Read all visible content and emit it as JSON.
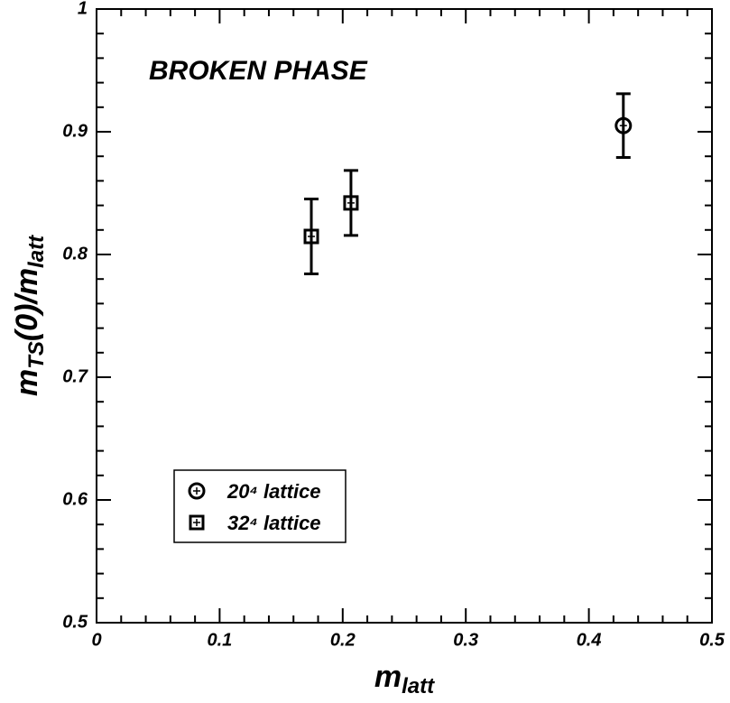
{
  "chart_data": {
    "type": "scatter",
    "annotation": "BROKEN PHASE",
    "xlabel_parts": [
      "m",
      "latt"
    ],
    "ylabel_parts": [
      "m",
      "TS",
      "(0)/m",
      "latt"
    ],
    "xlim": [
      0,
      0.5
    ],
    "ylim": [
      0.5,
      1
    ],
    "xticks": [
      0,
      0.1,
      0.2,
      0.3,
      0.4,
      0.5
    ],
    "yticks": [
      0.5,
      0.6,
      0.7,
      0.8,
      0.9,
      1
    ],
    "xminorticks": [
      0.02,
      0.04,
      0.06,
      0.08,
      0.12,
      0.14,
      0.16,
      0.18,
      0.22,
      0.24,
      0.26,
      0.28,
      0.32,
      0.34,
      0.36,
      0.38,
      0.42,
      0.44,
      0.46,
      0.48
    ],
    "yminorticks": [
      0.52,
      0.54,
      0.56,
      0.58,
      0.62,
      0.64,
      0.66,
      0.68,
      0.72,
      0.74,
      0.76,
      0.78,
      0.82,
      0.84,
      0.86,
      0.88,
      0.92,
      0.94,
      0.96,
      0.98
    ],
    "color": "#000000",
    "series": [
      {
        "name": "20⁴ lattice",
        "marker": "circle",
        "x": [
          0.428
        ],
        "values": [
          0.905
        ],
        "errors": [
          0.026
        ]
      },
      {
        "name": "32⁴ lattice",
        "marker": "square",
        "x": [
          0.1745,
          0.2067
        ],
        "values": [
          0.8147,
          0.842
        ],
        "errors": [
          0.0305,
          0.0265
        ]
      }
    ]
  }
}
